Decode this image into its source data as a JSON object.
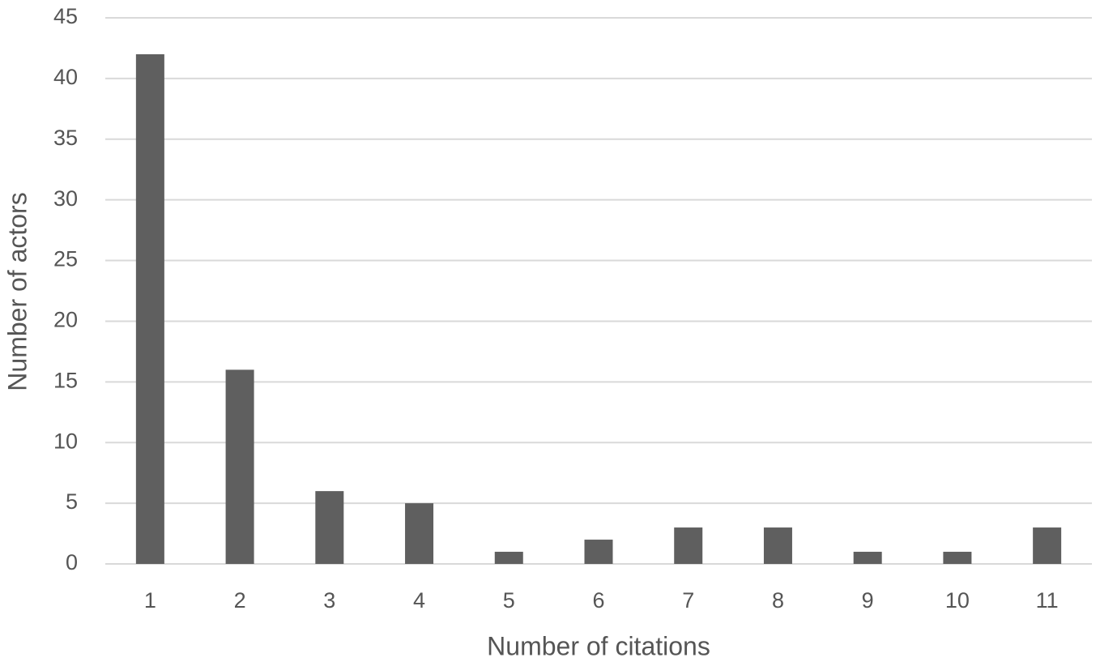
{
  "chart_data": {
    "type": "bar",
    "x_label": "Number of citations",
    "y_label": "Number of actors",
    "categories": [
      "1",
      "2",
      "3",
      "4",
      "5",
      "6",
      "7",
      "8",
      "9",
      "10",
      "11"
    ],
    "values": [
      42,
      16,
      6,
      5,
      1,
      2,
      3,
      3,
      1,
      1,
      3
    ],
    "color": "#5f5f5f",
    "ylim": [
      0,
      45
    ],
    "yticks": [
      0,
      5,
      10,
      15,
      20,
      25,
      30,
      35,
      40,
      45
    ],
    "grid": true
  }
}
